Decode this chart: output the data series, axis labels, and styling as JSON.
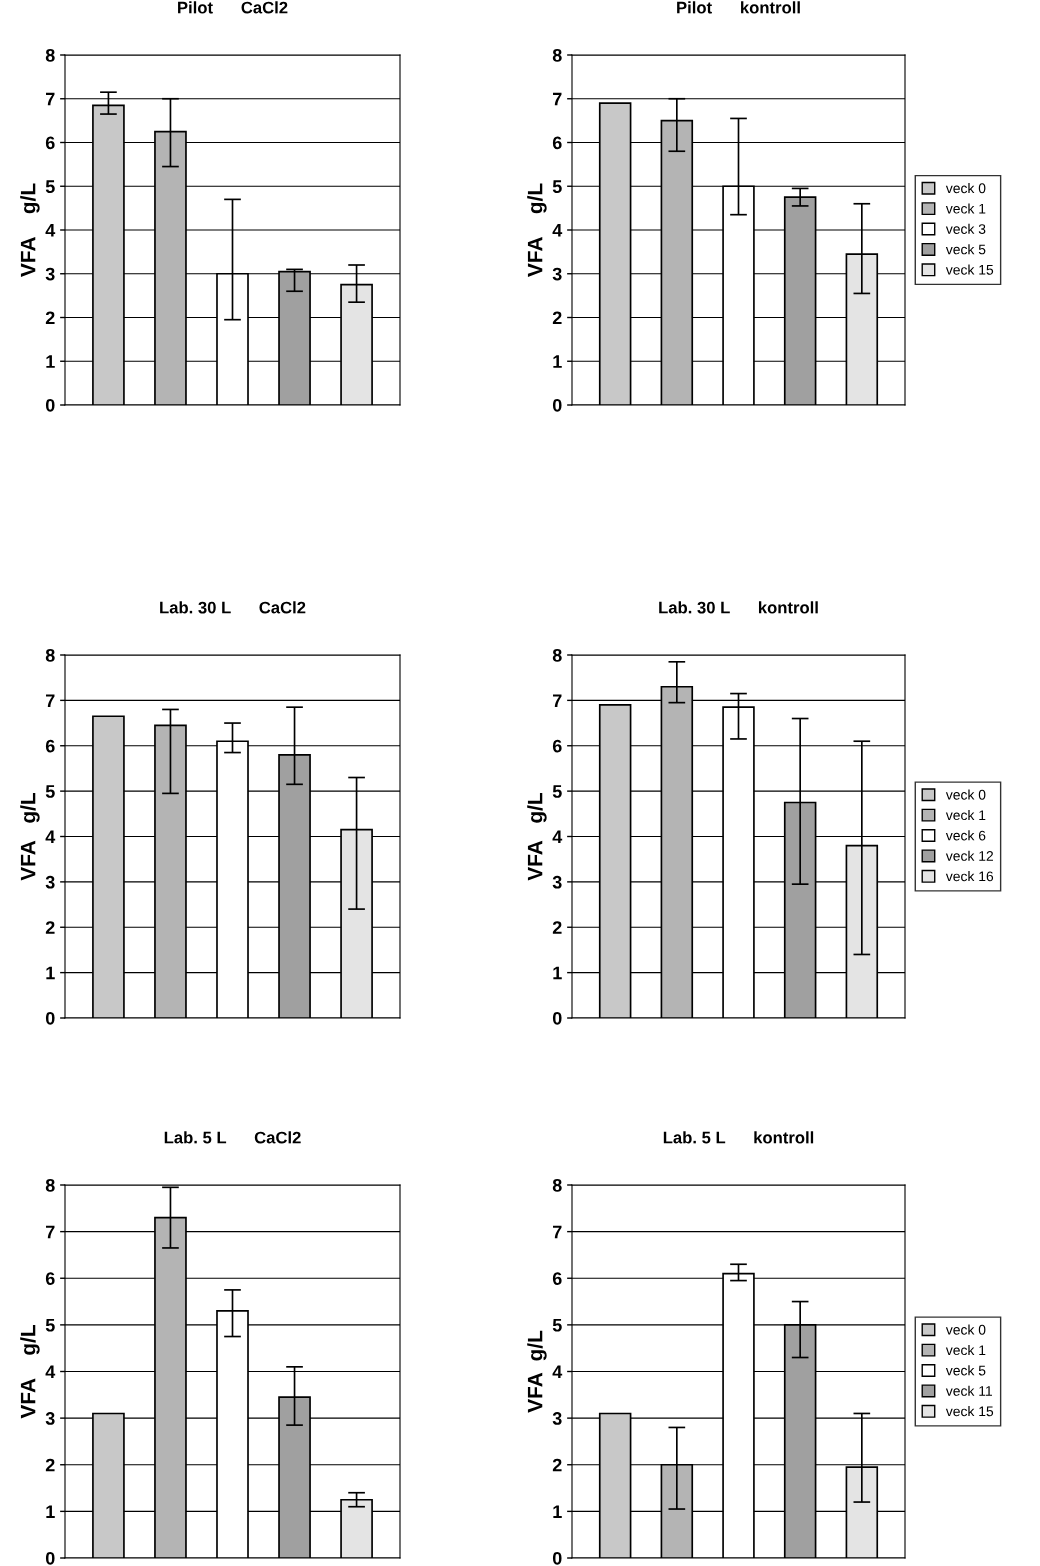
{
  "chart_data": [
    {
      "type": "bar",
      "title": "Pilot      CaCl2",
      "ylabel": "VFA    g/L",
      "categories": [
        null,
        null,
        null,
        null,
        null
      ],
      "ylim": [
        0,
        8
      ],
      "yticks": [
        0,
        1,
        2,
        3,
        4,
        5,
        6,
        7,
        8
      ],
      "grid": "y",
      "tick_labels": "y",
      "series": [
        {
          "color": "#c8c8c8",
          "values": [
            6.85,
            null,
            null,
            null,
            null
          ],
          "errors": [
            [
              6.65,
              7.15
            ],
            null,
            null,
            null,
            null
          ]
        },
        {
          "color": "#b4b4b4",
          "values": [
            null,
            6.25,
            null,
            null,
            null
          ],
          "errors": [
            null,
            [
              5.45,
              7.0
            ],
            null,
            null,
            null
          ]
        },
        {
          "color": "#ffffff",
          "values": [
            null,
            null,
            3.0,
            null,
            null
          ],
          "errors": [
            null,
            null,
            [
              1.95,
              4.7
            ],
            null,
            null
          ]
        },
        {
          "color": "#a0a0a0",
          "values": [
            null,
            null,
            null,
            3.05,
            null
          ],
          "errors": [
            null,
            null,
            null,
            [
              2.6,
              3.1
            ],
            null
          ]
        },
        {
          "color": "#e4e4e4",
          "values": [
            null,
            null,
            null,
            null,
            2.75
          ],
          "errors": [
            null,
            null,
            null,
            null,
            [
              2.35,
              3.2
            ]
          ]
        }
      ]
    },
    {
      "type": "bar",
      "title": "Pilot      kontroll",
      "ylabel": "VFA    g/L",
      "categories": [
        null,
        null,
        null,
        null,
        null
      ],
      "ylim": [
        0,
        8
      ],
      "yticks": [
        0,
        1,
        2,
        3,
        4,
        5,
        6,
        7,
        8
      ],
      "grid": "y",
      "tick_labels": "y",
      "legend": "right",
      "series": [
        {
          "name": "veck 0",
          "color": "#c8c8c8",
          "values": [
            6.9,
            null,
            null,
            null,
            null
          ]
        },
        {
          "name": "veck 1",
          "color": "#b4b4b4",
          "values": [
            null,
            6.5,
            null,
            null,
            null
          ],
          "errors": [
            null,
            [
              5.8,
              7.0
            ],
            null,
            null,
            null
          ]
        },
        {
          "name": "veck 3",
          "color": "#ffffff",
          "values": [
            null,
            null,
            5.0,
            null,
            null
          ],
          "errors": [
            null,
            null,
            [
              4.35,
              6.55
            ],
            null,
            null
          ]
        },
        {
          "name": "veck 5",
          "color": "#a0a0a0",
          "values": [
            null,
            null,
            null,
            4.75,
            null
          ],
          "errors": [
            null,
            null,
            null,
            [
              4.55,
              4.95
            ],
            null
          ]
        },
        {
          "name": "veck 15",
          "color": "#e4e4e4",
          "values": [
            null,
            null,
            null,
            null,
            3.45
          ],
          "errors": [
            null,
            null,
            null,
            null,
            [
              2.55,
              4.6
            ]
          ]
        }
      ]
    },
    {
      "type": "bar",
      "title": "Lab. 30 L      CaCl2",
      "ylabel": "VFA   g/L",
      "categories": [
        null,
        null,
        null,
        null,
        null
      ],
      "ylim": [
        0,
        8
      ],
      "yticks": [
        0,
        1,
        2,
        3,
        4,
        5,
        6,
        7,
        8
      ],
      "grid": "y",
      "tick_labels": "y",
      "series": [
        {
          "color": "#c8c8c8",
          "values": [
            6.65,
            null,
            null,
            null,
            null
          ]
        },
        {
          "color": "#b4b4b4",
          "values": [
            null,
            6.45,
            null,
            null,
            null
          ],
          "errors": [
            null,
            [
              4.95,
              6.8
            ],
            null,
            null,
            null
          ]
        },
        {
          "color": "#ffffff",
          "values": [
            null,
            null,
            6.1,
            null,
            null
          ],
          "errors": [
            null,
            null,
            [
              5.85,
              6.5
            ],
            null,
            null
          ]
        },
        {
          "color": "#a0a0a0",
          "values": [
            null,
            null,
            null,
            5.8,
            null
          ],
          "errors": [
            null,
            null,
            null,
            [
              5.15,
              6.85
            ],
            null
          ]
        },
        {
          "color": "#e4e4e4",
          "values": [
            null,
            null,
            null,
            null,
            4.15
          ],
          "errors": [
            null,
            null,
            null,
            null,
            [
              2.4,
              5.3
            ]
          ]
        }
      ]
    },
    {
      "type": "bar",
      "title": "Lab. 30 L      kontroll",
      "ylabel": "VFA   g/L",
      "categories": [
        null,
        null,
        null,
        null,
        null
      ],
      "ylim": [
        0,
        8
      ],
      "yticks": [
        0,
        1,
        2,
        3,
        4,
        5,
        6,
        7,
        8
      ],
      "grid": "y",
      "tick_labels": "y",
      "legend": "right",
      "series": [
        {
          "name": "veck 0",
          "color": "#c8c8c8",
          "values": [
            6.9,
            null,
            null,
            null,
            null
          ]
        },
        {
          "name": "veck 1",
          "color": "#b4b4b4",
          "values": [
            null,
            7.3,
            null,
            null,
            null
          ],
          "errors": [
            null,
            [
              6.95,
              7.85
            ],
            null,
            null,
            null
          ]
        },
        {
          "name": "veck 6",
          "color": "#ffffff",
          "values": [
            null,
            null,
            6.85,
            null,
            null
          ],
          "errors": [
            null,
            null,
            [
              6.15,
              7.15
            ],
            null,
            null
          ]
        },
        {
          "name": "veck 12",
          "color": "#a0a0a0",
          "values": [
            null,
            null,
            null,
            4.75,
            null
          ],
          "errors": [
            null,
            null,
            null,
            [
              2.95,
              6.6
            ],
            null
          ]
        },
        {
          "name": "veck 16",
          "color": "#e4e4e4",
          "values": [
            null,
            null,
            null,
            null,
            3.8
          ],
          "errors": [
            null,
            null,
            null,
            null,
            [
              1.4,
              6.1
            ]
          ]
        }
      ]
    },
    {
      "type": "bar",
      "title": "Lab. 5 L      CaCl2",
      "ylabel": "VFA    g/L",
      "categories": [
        null,
        null,
        null,
        null,
        null
      ],
      "ylim": [
        0,
        8
      ],
      "yticks": [
        0,
        1,
        2,
        3,
        4,
        5,
        6,
        7,
        8
      ],
      "grid": "y",
      "tick_labels": "y",
      "series": [
        {
          "color": "#c8c8c8",
          "values": [
            3.1,
            null,
            null,
            null,
            null
          ]
        },
        {
          "color": "#b4b4b4",
          "values": [
            null,
            7.3,
            null,
            null,
            null
          ],
          "errors": [
            null,
            [
              6.65,
              7.95
            ],
            null,
            null,
            null
          ]
        },
        {
          "color": "#ffffff",
          "values": [
            null,
            null,
            5.3,
            null,
            null
          ],
          "errors": [
            null,
            null,
            [
              4.75,
              5.75
            ],
            null,
            null
          ]
        },
        {
          "color": "#a0a0a0",
          "values": [
            null,
            null,
            null,
            3.45,
            null
          ],
          "errors": [
            null,
            null,
            null,
            [
              2.85,
              4.1
            ],
            null
          ]
        },
        {
          "color": "#e4e4e4",
          "values": [
            null,
            null,
            null,
            null,
            1.25
          ],
          "errors": [
            null,
            null,
            null,
            null,
            [
              1.1,
              1.4
            ]
          ]
        }
      ]
    },
    {
      "type": "bar",
      "title": "Lab. 5 L      kontroll",
      "ylabel": "VFA  g/L",
      "categories": [
        null,
        null,
        null,
        null,
        null
      ],
      "ylim": [
        0,
        8
      ],
      "yticks": [
        0,
        1,
        2,
        3,
        4,
        5,
        6,
        7,
        8
      ],
      "grid": "y",
      "tick_labels": "y",
      "legend": "right",
      "series": [
        {
          "name": "veck 0",
          "color": "#c8c8c8",
          "values": [
            3.1,
            null,
            null,
            null,
            null
          ]
        },
        {
          "name": "veck 1",
          "color": "#b4b4b4",
          "values": [
            null,
            2.0,
            null,
            null,
            null
          ],
          "errors": [
            null,
            [
              1.05,
              2.8
            ],
            null,
            null,
            null
          ]
        },
        {
          "name": "veck 5",
          "color": "#ffffff",
          "values": [
            null,
            null,
            6.1,
            null,
            null
          ],
          "errors": [
            null,
            null,
            [
              5.95,
              6.3
            ],
            null,
            null
          ]
        },
        {
          "name": "veck 11",
          "color": "#a0a0a0",
          "values": [
            null,
            null,
            null,
            5.0,
            null
          ],
          "errors": [
            null,
            null,
            null,
            [
              4.3,
              5.5
            ],
            null
          ]
        },
        {
          "name": "veck 15",
          "color": "#e4e4e4",
          "values": [
            null,
            null,
            null,
            null,
            1.95
          ],
          "errors": [
            null,
            null,
            null,
            null,
            [
              1.2,
              3.1
            ]
          ]
        }
      ]
    }
  ]
}
